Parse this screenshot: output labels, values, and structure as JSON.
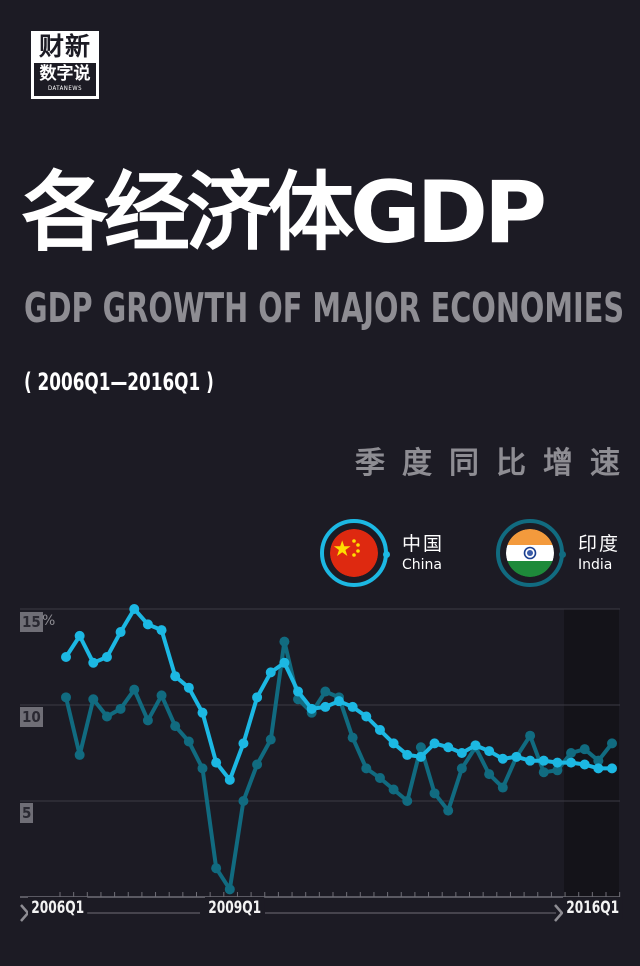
{
  "logo": {
    "top_text": "财新",
    "bottom_text": "数字说",
    "sub_text": "DATANEWS"
  },
  "header": {
    "title_cn": "各经济体GDP",
    "title_en": "GDP GROWTH OF MAJOR ECONOMIES",
    "period": "( 2006Q1—2016Q1 )",
    "metric": "季度同比增速"
  },
  "legend": [
    {
      "name_cn": "中国",
      "name_en": "China",
      "color": "#1cb8e3",
      "flag": "china-flag-icon"
    },
    {
      "name_cn": "印度",
      "name_en": "India",
      "color": "#116b80",
      "flag": "india-flag-icon"
    }
  ],
  "colors": {
    "background": "#1c1b24",
    "china": "#1cb8e3",
    "india": "#116b80",
    "grid": "#3c3b45",
    "axis": "#6f6e76",
    "highlight_band": "#141319"
  },
  "axis": {
    "y_ticks": [
      "15",
      "10",
      "5"
    ],
    "y_unit": "%",
    "x_labels": [
      "2006Q1",
      "2009Q1",
      "2016Q1"
    ]
  },
  "chart_data": {
    "type": "line",
    "title": "各经济体GDP / GDP GROWTH OF MAJOR ECONOMIES",
    "subtitle": "( 2006Q1—2016Q1 ) 季度同比增速",
    "xlabel": "",
    "ylabel": "%",
    "ylim": [
      0,
      15
    ],
    "y_ticks": [
      5,
      10,
      15
    ],
    "grid": true,
    "legend_position": "top-right",
    "highlight_range": [
      "2015Q2",
      "2016Q1"
    ],
    "x": [
      "2006Q1",
      "2006Q2",
      "2006Q3",
      "2006Q4",
      "2007Q1",
      "2007Q2",
      "2007Q3",
      "2007Q4",
      "2008Q1",
      "2008Q2",
      "2008Q3",
      "2008Q4",
      "2009Q1",
      "2009Q2",
      "2009Q3",
      "2009Q4",
      "2010Q1",
      "2010Q2",
      "2010Q3",
      "2010Q4",
      "2011Q1",
      "2011Q2",
      "2011Q3",
      "2011Q4",
      "2012Q1",
      "2012Q2",
      "2012Q3",
      "2012Q4",
      "2013Q1",
      "2013Q2",
      "2013Q3",
      "2013Q4",
      "2014Q1",
      "2014Q2",
      "2014Q3",
      "2014Q4",
      "2015Q1",
      "2015Q2",
      "2015Q3",
      "2015Q4",
      "2016Q1"
    ],
    "x_tick_labels": [
      "2006Q1",
      "2009Q1",
      "2016Q1"
    ],
    "series": [
      {
        "name": "中国 China",
        "color": "#1cb8e3",
        "values": [
          12.5,
          13.6,
          12.2,
          12.5,
          13.8,
          15.0,
          14.2,
          13.9,
          11.5,
          10.9,
          9.6,
          7.0,
          6.1,
          8.0,
          10.4,
          11.7,
          12.2,
          10.7,
          9.8,
          9.9,
          10.2,
          9.9,
          9.4,
          8.7,
          8.0,
          7.4,
          7.3,
          8.0,
          7.8,
          7.5,
          7.9,
          7.6,
          7.2,
          7.3,
          7.1,
          7.1,
          7.0,
          7.0,
          6.9,
          6.7,
          6.7
        ]
      },
      {
        "name": "印度 India",
        "color": "#116b80",
        "values": [
          10.4,
          7.4,
          10.3,
          9.4,
          9.8,
          10.8,
          9.2,
          10.5,
          8.9,
          8.1,
          6.7,
          1.5,
          0.4,
          5.0,
          6.9,
          8.2,
          13.3,
          10.3,
          9.6,
          10.7,
          10.4,
          8.3,
          6.7,
          6.2,
          5.6,
          5.0,
          7.8,
          5.4,
          4.5,
          6.7,
          7.8,
          6.4,
          5.7,
          7.3,
          8.4,
          6.5,
          6.6,
          7.5,
          7.7,
          7.1,
          8.0
        ]
      }
    ]
  }
}
